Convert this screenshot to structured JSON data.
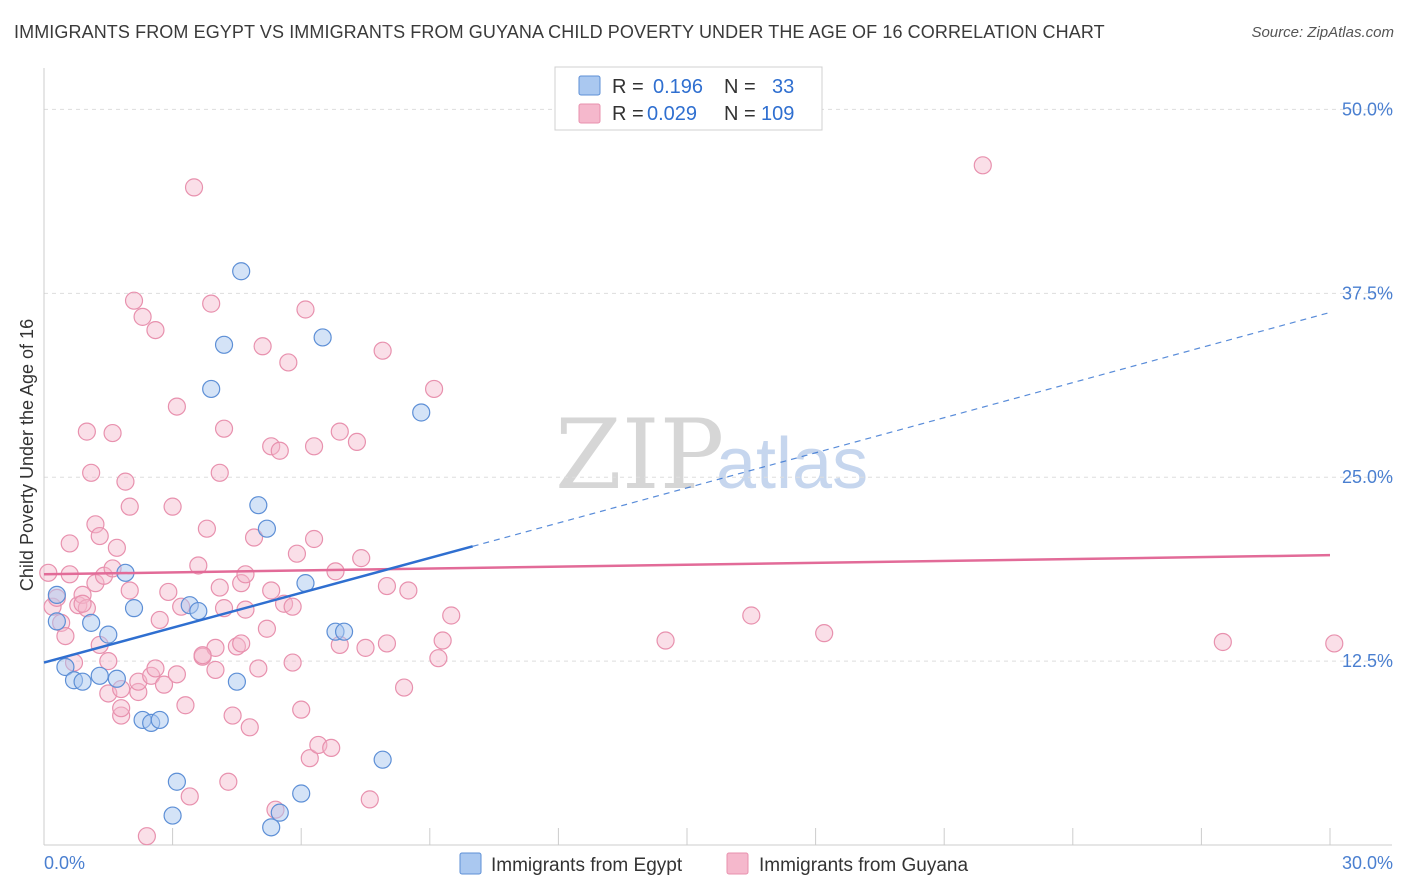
{
  "header": {
    "title": "IMMIGRANTS FROM EGYPT VS IMMIGRANTS FROM GUYANA CHILD POVERTY UNDER THE AGE OF 16 CORRELATION CHART",
    "source": "Source: ZipAtlas.com"
  },
  "watermark": {
    "zip": "ZIP",
    "atlas": "atlas"
  },
  "colors": {
    "egypt_fill": "#aac8f0",
    "egypt_stroke": "#5d8fd6",
    "egypt_line": "#2f6fd0",
    "guyana_fill": "#f5b8cc",
    "guyana_stroke": "#e891ae",
    "guyana_line": "#e26b98",
    "axis_text": "#4a7fd0",
    "grid": "#dddddd"
  },
  "legend": {
    "rows": [
      {
        "r_label": "R =",
        "r_value": "0.196",
        "n_label": "N =",
        "n_value": "33"
      },
      {
        "r_label": "R =",
        "r_value": "0.029",
        "n_label": "N =",
        "n_value": "109"
      }
    ]
  },
  "chart_data": {
    "type": "scatter",
    "xlabel": "",
    "ylabel": "Child Poverty Under the Age of 16",
    "xlim": [
      0,
      30
    ],
    "ylim": [
      0,
      52
    ],
    "x_tick_labels": [
      "0.0%",
      "30.0%"
    ],
    "y_ticks": [
      12.5,
      25.0,
      37.5,
      50.0
    ],
    "y_tick_labels": [
      "12.5%",
      "25.0%",
      "37.5%",
      "50.0%"
    ],
    "grid": true,
    "legend_position": "bottom",
    "series": [
      {
        "name": "Immigrants from Egypt",
        "trend": {
          "x0": 0.0,
          "y0": 12.4,
          "x1": 10.0,
          "y1": 20.3,
          "dashed_to_x": 30.0,
          "dashed_to_y": 36.2
        },
        "points": [
          [
            0.3,
            17.0
          ],
          [
            0.3,
            15.2
          ],
          [
            0.5,
            12.1
          ],
          [
            0.7,
            11.2
          ],
          [
            0.9,
            11.1
          ],
          [
            1.1,
            15.1
          ],
          [
            1.3,
            11.5
          ],
          [
            1.5,
            14.3
          ],
          [
            1.7,
            11.3
          ],
          [
            1.9,
            18.5
          ],
          [
            2.1,
            16.1
          ],
          [
            2.3,
            8.5
          ],
          [
            2.5,
            8.3
          ],
          [
            2.7,
            8.5
          ],
          [
            3.1,
            4.3
          ],
          [
            3.4,
            16.3
          ],
          [
            3.6,
            15.9
          ],
          [
            3.9,
            31.0
          ],
          [
            4.2,
            34.0
          ],
          [
            4.5,
            11.1
          ],
          [
            4.6,
            39.0
          ],
          [
            5.0,
            23.1
          ],
          [
            5.2,
            21.5
          ],
          [
            5.3,
            1.2
          ],
          [
            5.5,
            2.2
          ],
          [
            6.0,
            3.5
          ],
          [
            6.1,
            17.8
          ],
          [
            6.5,
            34.5
          ],
          [
            6.8,
            14.5
          ],
          [
            7.0,
            14.5
          ],
          [
            7.9,
            5.8
          ],
          [
            8.8,
            29.4
          ],
          [
            3.0,
            2.0
          ]
        ]
      },
      {
        "name": "Immigrants from Guyana",
        "trend": {
          "x0": 0.0,
          "y0": 18.4,
          "x1": 30.0,
          "y1": 19.7
        },
        "points": [
          [
            0.1,
            18.5
          ],
          [
            0.2,
            16.2
          ],
          [
            0.3,
            16.8
          ],
          [
            0.4,
            15.1
          ],
          [
            0.5,
            14.2
          ],
          [
            0.6,
            20.5
          ],
          [
            0.6,
            18.4
          ],
          [
            0.7,
            12.4
          ],
          [
            0.8,
            16.3
          ],
          [
            0.9,
            17.0
          ],
          [
            1.0,
            28.1
          ],
          [
            1.0,
            16.1
          ],
          [
            1.1,
            25.3
          ],
          [
            1.2,
            21.8
          ],
          [
            1.2,
            17.8
          ],
          [
            1.3,
            21.0
          ],
          [
            1.4,
            18.3
          ],
          [
            1.5,
            12.5
          ],
          [
            1.5,
            10.3
          ],
          [
            1.6,
            28.0
          ],
          [
            1.6,
            18.8
          ],
          [
            1.7,
            20.2
          ],
          [
            1.8,
            8.8
          ],
          [
            1.8,
            10.6
          ],
          [
            1.9,
            24.7
          ],
          [
            2.0,
            23.0
          ],
          [
            2.0,
            17.3
          ],
          [
            2.1,
            37.0
          ],
          [
            2.2,
            10.4
          ],
          [
            2.2,
            11.1
          ],
          [
            2.3,
            35.9
          ],
          [
            2.4,
            0.6
          ],
          [
            2.5,
            11.5
          ],
          [
            2.6,
            35.0
          ],
          [
            2.7,
            15.3
          ],
          [
            2.8,
            10.9
          ],
          [
            3.0,
            23.0
          ],
          [
            3.1,
            11.6
          ],
          [
            3.1,
            29.8
          ],
          [
            3.2,
            16.2
          ],
          [
            3.3,
            9.5
          ],
          [
            3.4,
            3.3
          ],
          [
            3.5,
            44.7
          ],
          [
            3.6,
            19.0
          ],
          [
            3.7,
            12.8
          ],
          [
            3.8,
            21.5
          ],
          [
            3.9,
            36.8
          ],
          [
            4.0,
            11.9
          ],
          [
            4.0,
            13.4
          ],
          [
            4.1,
            17.5
          ],
          [
            4.1,
            25.3
          ],
          [
            4.2,
            16.1
          ],
          [
            4.2,
            28.3
          ],
          [
            4.3,
            4.3
          ],
          [
            4.4,
            8.8
          ],
          [
            4.5,
            13.5
          ],
          [
            4.6,
            17.8
          ],
          [
            4.6,
            13.7
          ],
          [
            4.7,
            16.0
          ],
          [
            4.8,
            8.0
          ],
          [
            4.9,
            20.9
          ],
          [
            5.0,
            12.0
          ],
          [
            5.1,
            33.9
          ],
          [
            5.2,
            14.7
          ],
          [
            5.3,
            17.3
          ],
          [
            5.3,
            27.1
          ],
          [
            5.4,
            2.4
          ],
          [
            5.5,
            26.8
          ],
          [
            5.6,
            16.4
          ],
          [
            5.7,
            32.8
          ],
          [
            5.8,
            16.2
          ],
          [
            5.9,
            19.8
          ],
          [
            6.0,
            9.2
          ],
          [
            6.1,
            36.4
          ],
          [
            6.2,
            5.9
          ],
          [
            6.3,
            27.1
          ],
          [
            6.4,
            6.8
          ],
          [
            6.7,
            6.6
          ],
          [
            6.8,
            18.6
          ],
          [
            6.9,
            28.1
          ],
          [
            6.9,
            13.6
          ],
          [
            7.3,
            27.4
          ],
          [
            7.4,
            19.5
          ],
          [
            7.5,
            13.4
          ],
          [
            7.6,
            3.1
          ],
          [
            7.9,
            33.6
          ],
          [
            8.0,
            13.7
          ],
          [
            8.4,
            10.7
          ],
          [
            8.5,
            17.3
          ],
          [
            9.1,
            31.0
          ],
          [
            9.2,
            12.7
          ],
          [
            9.3,
            13.9
          ],
          [
            9.5,
            15.6
          ],
          [
            14.5,
            13.9
          ],
          [
            16.5,
            15.6
          ],
          [
            18.2,
            14.4
          ],
          [
            21.9,
            46.2
          ],
          [
            27.5,
            13.8
          ],
          [
            30.1,
            13.7
          ],
          [
            1.3,
            13.6
          ],
          [
            0.9,
            16.4
          ],
          [
            2.9,
            17.2
          ],
          [
            4.7,
            18.4
          ],
          [
            3.7,
            12.9
          ],
          [
            5.8,
            12.4
          ],
          [
            6.3,
            20.8
          ],
          [
            8.0,
            17.6
          ],
          [
            1.8,
            9.3
          ],
          [
            2.6,
            12.0
          ]
        ]
      }
    ]
  },
  "bottom_legend": {
    "items": [
      "Immigrants from Egypt",
      "Immigrants from Guyana"
    ]
  }
}
